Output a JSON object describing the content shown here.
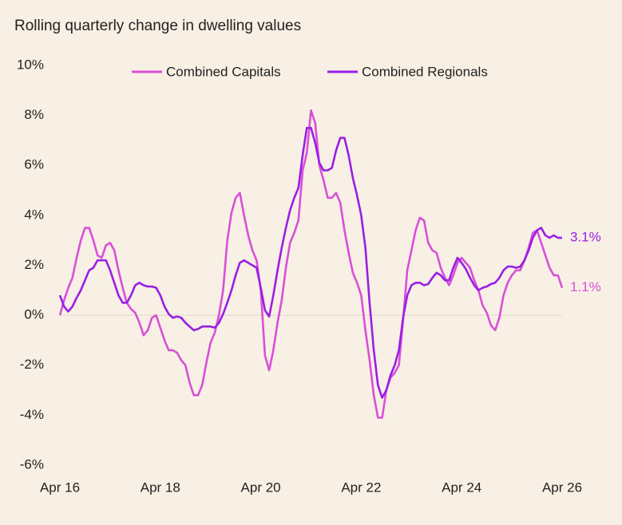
{
  "chart_data": {
    "type": "line",
    "title": "Rolling quarterly change in dwelling values",
    "categories": [
      "Apr 16",
      null,
      null,
      null,
      null,
      null,
      null,
      null,
      null,
      null,
      null,
      null,
      null,
      null,
      null,
      null,
      null,
      null,
      null,
      null,
      null,
      null,
      null,
      null,
      "Apr 18",
      null,
      null,
      null,
      null,
      null,
      null,
      null,
      null,
      null,
      null,
      null,
      null,
      null,
      null,
      null,
      null,
      null,
      null,
      null,
      null,
      null,
      null,
      null,
      "Apr 20",
      null,
      null,
      null,
      null,
      null,
      null,
      null,
      null,
      null,
      null,
      null,
      null,
      null,
      null,
      null,
      null,
      null,
      null,
      null,
      null,
      null,
      null,
      null,
      "Apr 22",
      null,
      null,
      null,
      null,
      null,
      null,
      null,
      null,
      null,
      null,
      null,
      null,
      null,
      null,
      null,
      null,
      null,
      null,
      null,
      null,
      null,
      null,
      null,
      "Apr 24",
      null,
      null,
      null,
      null,
      null,
      null,
      null,
      null,
      null,
      null,
      null,
      null,
      null,
      null,
      null,
      null,
      null,
      null,
      null,
      null,
      null,
      null,
      null,
      "Apr 26"
    ],
    "series": [
      {
        "name": "Combined Capitals",
        "color": "#d94fd9",
        "values": [
          0.0,
          0.6,
          1.1,
          1.5,
          2.3,
          3.0,
          3.5,
          3.5,
          3.0,
          2.4,
          2.3,
          2.8,
          2.9,
          2.6,
          1.8,
          1.1,
          0.5,
          0.25,
          0.1,
          -0.3,
          -0.8,
          -0.6,
          -0.1,
          0.0,
          -0.5,
          -1.0,
          -1.4,
          -1.4,
          -1.5,
          -1.8,
          -2.0,
          -2.7,
          -3.2,
          -3.2,
          -2.8,
          -1.9,
          -1.1,
          -0.7,
          0.0,
          1.0,
          3.0,
          4.1,
          4.7,
          4.9,
          4.0,
          3.2,
          2.6,
          2.2,
          1.0,
          -1.6,
          -2.2,
          -1.4,
          -0.3,
          0.6,
          1.9,
          2.9,
          3.3,
          3.8,
          5.8,
          6.5,
          8.2,
          7.7,
          6.0,
          5.4,
          4.7,
          4.7,
          4.9,
          4.5,
          3.4,
          2.5,
          1.7,
          1.3,
          0.8,
          -0.6,
          -1.8,
          -3.2,
          -4.1,
          -4.1,
          -3.0,
          -2.5,
          -2.3,
          -2.0,
          -0.2,
          1.8,
          2.6,
          3.4,
          3.9,
          3.8,
          2.9,
          2.6,
          2.5,
          1.9,
          1.5,
          1.2,
          1.6,
          2.1,
          2.3,
          2.1,
          1.9,
          1.4,
          1.0,
          0.4,
          0.1,
          -0.4,
          -0.6,
          -0.1,
          0.8,
          1.3,
          1.6,
          1.8,
          1.8,
          2.2,
          2.7,
          3.3,
          3.4,
          2.9,
          2.4,
          1.9,
          1.6,
          1.6,
          1.1
        ],
        "value_labels": [
          null,
          null,
          null,
          null,
          null,
          null,
          null,
          null,
          null,
          null,
          null,
          null,
          null,
          null,
          null,
          null,
          null,
          null,
          null,
          null,
          null,
          null,
          null,
          null,
          null,
          null,
          null,
          null,
          null,
          null,
          null,
          null,
          null,
          null,
          null,
          null,
          null,
          null,
          null,
          null,
          null,
          null,
          null,
          null,
          null,
          null,
          null,
          null,
          null,
          null,
          null,
          null,
          null,
          null,
          null,
          null,
          null,
          null,
          null,
          null,
          null,
          null,
          null,
          null,
          null,
          null,
          null,
          null,
          null,
          null,
          null,
          null,
          null,
          null,
          null,
          null,
          null,
          null,
          null,
          null,
          null,
          null,
          null,
          null,
          null,
          null,
          null,
          null,
          null,
          null,
          null,
          null,
          null,
          null,
          null,
          null,
          null,
          null,
          null,
          null,
          null,
          null,
          null,
          null,
          null,
          null,
          null,
          null,
          null,
          null,
          null,
          null,
          null,
          null,
          null,
          null,
          null,
          null,
          null,
          null,
          "1.1%"
        ]
      },
      {
        "name": "Combined Regionals",
        "color": "#9a1ee6",
        "values": [
          0.8,
          0.35,
          0.15,
          0.35,
          0.7,
          1.0,
          1.4,
          1.8,
          1.9,
          2.2,
          2.2,
          2.2,
          1.8,
          1.3,
          0.8,
          0.5,
          0.5,
          0.8,
          1.2,
          1.3,
          1.2,
          1.15,
          1.15,
          1.1,
          0.8,
          0.35,
          0.05,
          -0.1,
          -0.05,
          -0.1,
          -0.3,
          -0.45,
          -0.6,
          -0.55,
          -0.45,
          -0.45,
          -0.45,
          -0.5,
          -0.3,
          0.05,
          0.5,
          1.0,
          1.6,
          2.1,
          2.2,
          2.1,
          2.0,
          1.9,
          1.1,
          0.2,
          -0.05,
          0.8,
          1.8,
          2.7,
          3.5,
          4.2,
          4.7,
          5.1,
          6.4,
          7.5,
          7.5,
          6.9,
          6.1,
          5.8,
          5.8,
          5.9,
          6.6,
          7.1,
          7.1,
          6.4,
          5.5,
          4.8,
          4.0,
          2.7,
          0.5,
          -1.4,
          -2.8,
          -3.3,
          -3.0,
          -2.4,
          -2.0,
          -1.4,
          -0.1,
          0.8,
          1.2,
          1.3,
          1.3,
          1.2,
          1.25,
          1.5,
          1.7,
          1.6,
          1.4,
          1.4,
          1.9,
          2.3,
          2.1,
          1.85,
          1.5,
          1.2,
          1.0,
          1.1,
          1.15,
          1.25,
          1.3,
          1.5,
          1.8,
          1.95,
          1.95,
          1.9,
          1.95,
          2.2,
          2.6,
          3.1,
          3.4,
          3.5,
          3.2,
          3.1,
          3.2,
          3.1,
          3.1
        ],
        "value_labels": [
          null,
          null,
          null,
          null,
          null,
          null,
          null,
          null,
          null,
          null,
          null,
          null,
          null,
          null,
          null,
          null,
          null,
          null,
          null,
          null,
          null,
          null,
          null,
          null,
          null,
          null,
          null,
          null,
          null,
          null,
          null,
          null,
          null,
          null,
          null,
          null,
          null,
          null,
          null,
          null,
          null,
          null,
          null,
          null,
          null,
          null,
          null,
          null,
          null,
          null,
          null,
          null,
          null,
          null,
          null,
          null,
          null,
          null,
          null,
          null,
          null,
          null,
          null,
          null,
          null,
          null,
          null,
          null,
          null,
          null,
          null,
          null,
          null,
          null,
          null,
          null,
          null,
          null,
          null,
          null,
          null,
          null,
          null,
          null,
          null,
          null,
          null,
          null,
          null,
          null,
          null,
          null,
          null,
          null,
          null,
          null,
          null,
          null,
          null,
          null,
          null,
          null,
          null,
          null,
          null,
          null,
          null,
          null,
          null,
          null,
          null,
          null,
          null,
          null,
          null,
          null,
          null,
          null,
          null,
          null,
          "3.1%"
        ]
      }
    ],
    "ylim": [
      -6,
      10
    ],
    "yticks": [
      {
        "value": -6,
        "label": "-6%"
      },
      {
        "value": -4,
        "label": "-4%"
      },
      {
        "value": -2,
        "label": "-2%"
      },
      {
        "value": 0,
        "label": "0%"
      },
      {
        "value": 2,
        "label": "2%"
      },
      {
        "value": 4,
        "label": "4%"
      },
      {
        "value": 6,
        "label": "6%"
      },
      {
        "value": 8,
        "label": "8%"
      },
      {
        "value": 10,
        "label": "10%"
      }
    ],
    "grid": false,
    "legend": "top"
  }
}
